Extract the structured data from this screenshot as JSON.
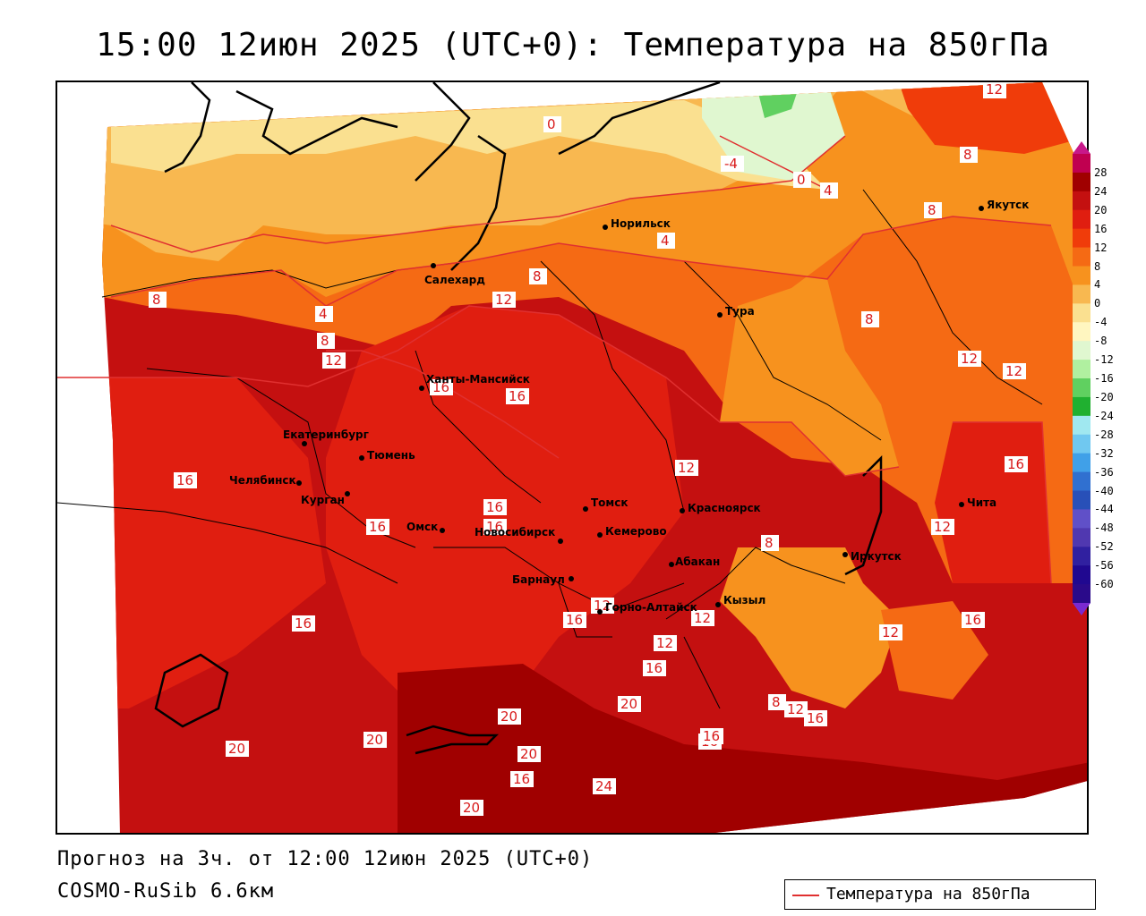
{
  "title": "15:00 12июн 2025 (UTC+0): Температура на 850гПа",
  "footer": {
    "forecast": "Прогноз на 3ч. от 12:00 12июн 2025 (UTC+0)",
    "model": "COSMO-RuSib 6.6км"
  },
  "legend": {
    "label": "Температура на 850гПа",
    "line_color": "#e03030"
  },
  "colorbar": {
    "labels": [
      "28",
      "24",
      "20",
      "16",
      "12",
      "8",
      "4",
      "0",
      "-4",
      "-8",
      "-12",
      "-16",
      "-20",
      "-24",
      "-28",
      "-32",
      "-36",
      "-40",
      "-44",
      "-48",
      "-52",
      "-56",
      "-60"
    ],
    "colors": [
      "#c00050",
      "#a00000",
      "#c41010",
      "#e01e10",
      "#f03c0a",
      "#f56a14",
      "#f7921e",
      "#f8b850",
      "#fae090",
      "#fff6c0",
      "#e0f7d0",
      "#b0f0a0",
      "#60d060",
      "#20b030",
      "#a0e8f0",
      "#70c8f0",
      "#40a0e8",
      "#3070d0",
      "#2850b8",
      "#6050c8",
      "#5038b0",
      "#3020a0",
      "#200890",
      "#2a0a8a"
    ]
  },
  "cities": [
    {
      "name": "Салехард"
    },
    {
      "name": "Норильск"
    },
    {
      "name": "Якутск"
    },
    {
      "name": "Тура"
    },
    {
      "name": "Ханты-Мансийск"
    },
    {
      "name": "Екатеринбург"
    },
    {
      "name": "Тюмень"
    },
    {
      "name": "Челябинск"
    },
    {
      "name": "Курган"
    },
    {
      "name": "Омск"
    },
    {
      "name": "Новосибирск"
    },
    {
      "name": "Томск"
    },
    {
      "name": "Кемерово"
    },
    {
      "name": "Красноярск"
    },
    {
      "name": "Абакан"
    },
    {
      "name": "Барнаул"
    },
    {
      "name": "Горно-Алтайск"
    },
    {
      "name": "Кызыл"
    },
    {
      "name": "Иркутск"
    },
    {
      "name": "Чита"
    }
  ],
  "isotherm_labels": [
    "0",
    "-4",
    "0",
    "4",
    "4",
    "8",
    "12",
    "8",
    "4",
    "8",
    "12",
    "16",
    "16",
    "12",
    "8",
    "8",
    "12",
    "12",
    "16",
    "12",
    "16",
    "16",
    "16",
    "16",
    "16",
    "8",
    "12",
    "16",
    "16",
    "12",
    "12",
    "16",
    "16",
    "20",
    "20",
    "20",
    "20",
    "16",
    "24",
    "20",
    "8",
    "12",
    "16",
    "20",
    "12",
    "16",
    "12",
    "8"
  ]
}
